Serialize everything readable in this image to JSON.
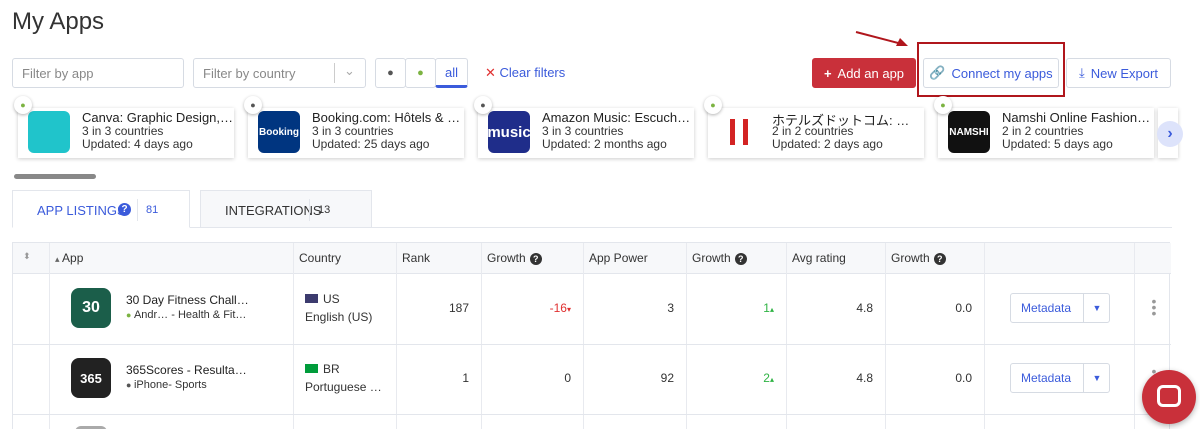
{
  "header": {
    "title": "My Apps"
  },
  "filters": {
    "app_placeholder": "Filter by app",
    "country_placeholder": "Filter by country",
    "platform_all": "all",
    "clear": "Clear filters"
  },
  "actions": {
    "add": "Add an app",
    "connect": "Connect my apps",
    "export": "New Export"
  },
  "app_cards": [
    {
      "name": "Canva: Graphic Design,…",
      "countries": "3 in 3 countries",
      "updated": "Updated: 4 days ago"
    },
    {
      "name": "Booking.com: Hôtels & …",
      "icon_label": "Booking",
      "countries": "3 in 3 countries",
      "updated": "Updated: 25 days ago"
    },
    {
      "name": "Amazon Music: Escuch…",
      "icon_label": "music",
      "countries": "3 in 3 countries",
      "updated": "Updated: 2 months ago"
    },
    {
      "name": "ホテルズドットコム: …",
      "countries": "2 in 2 countries",
      "updated": "Updated: 2 days ago"
    },
    {
      "name": "Namshi Online Fashion…",
      "icon_label": "NAMSHI",
      "countries": "2 in 2 countries",
      "updated": "Updated: 5 days ago"
    }
  ],
  "tabs": [
    {
      "label": "APP LISTINGS",
      "count": 81
    },
    {
      "label": "INTEGRATIONS",
      "count": 13
    }
  ],
  "table": {
    "columns": [
      "App",
      "Country",
      "Rank",
      "Growth",
      "App Power",
      "Growth",
      "Avg rating",
      "Growth"
    ],
    "rows": [
      {
        "icon_label": "30",
        "name": "30 Day Fitness Chall…",
        "platform": "Andr… - Health & Fit…",
        "country_code": "US",
        "language": "English (US)",
        "rank": 187,
        "rank_growth": -16,
        "app_power": 3,
        "power_growth": 1,
        "avg_rating": 4.8,
        "rating_growth": "0.0",
        "action": "Metadata"
      },
      {
        "icon_label": "365",
        "name": "365Scores - Resulta…",
        "platform": "iPhone- Sports",
        "country_code": "BR",
        "language": "Portuguese …",
        "rank": 1,
        "rank_growth": 0,
        "app_power": 92,
        "power_growth": 2,
        "avg_rating": 4.8,
        "rating_growth": "0.0",
        "action": "Metadata"
      }
    ]
  }
}
